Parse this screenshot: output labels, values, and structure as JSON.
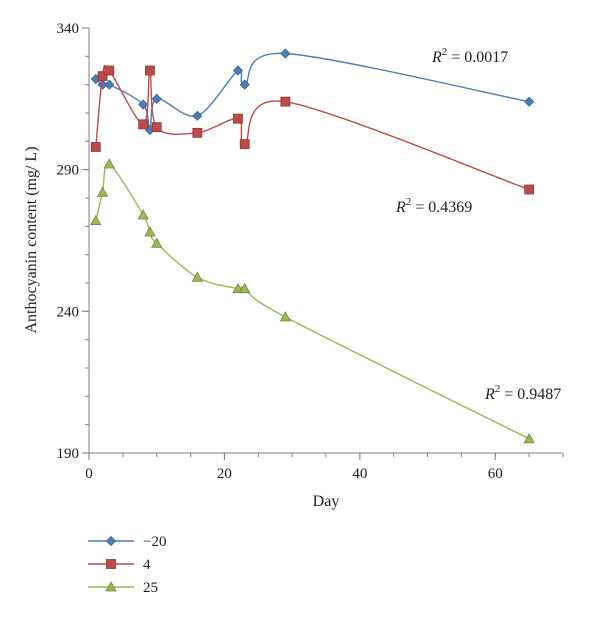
{
  "chart_data": {
    "type": "line",
    "title": "",
    "xlabel": "Day",
    "ylabel": "Anthocyanin content (mg/ L)",
    "xlim": [
      0,
      70
    ],
    "ylim": [
      190,
      340
    ],
    "xticks": [
      0,
      20,
      40,
      60
    ],
    "yticks": [
      190,
      240,
      290,
      340
    ],
    "legend_position": "bottom-left",
    "grid": false,
    "series": [
      {
        "name": "−20",
        "color": "#4a7ebb",
        "marker": "diamond",
        "x": [
          1,
          2,
          3,
          8,
          9,
          10,
          16,
          22,
          23,
          29,
          65
        ],
        "y": [
          322,
          320,
          320,
          313,
          304,
          315,
          309,
          325,
          320,
          331,
          314
        ],
        "r2_label": "0.0017"
      },
      {
        "name": "4",
        "color": "#be4b48",
        "marker": "square",
        "x": [
          1,
          2,
          3,
          8,
          9,
          10,
          16,
          22,
          23,
          29,
          65
        ],
        "y": [
          298,
          323,
          325,
          306,
          325,
          305,
          303,
          308,
          299,
          314,
          283
        ],
        "r2_label": "0.4369"
      },
      {
        "name": "25",
        "color": "#98b954",
        "marker": "triangle",
        "x": [
          1,
          2,
          3,
          8,
          9,
          10,
          16,
          22,
          23,
          29,
          65
        ],
        "y": [
          272,
          282,
          292,
          274,
          268,
          264,
          252,
          248,
          248,
          238,
          195
        ],
        "r2_label": "0.9487"
      }
    ]
  }
}
